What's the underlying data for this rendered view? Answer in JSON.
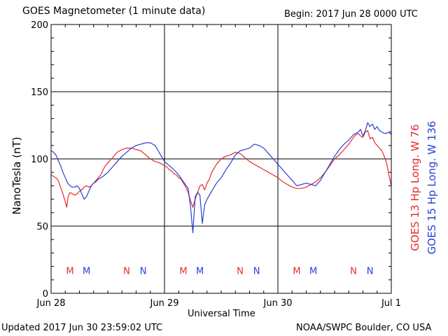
{
  "header": {
    "title": "GOES Magnetometer (1 minute data)",
    "begin": "Begin:  2017 Jun 28 0000 UTC"
  },
  "footer": {
    "updated": "Updated 2017 Jun 30 23:59:02 UTC",
    "source": "NOAA/SWPC Boulder, CO USA"
  },
  "colors": {
    "goes13": "#e52b2b",
    "goes15": "#2b3fd6"
  },
  "chart_data": {
    "type": "line",
    "title": "GOES Magnetometer (1 minute data)",
    "xlabel": "Universal Time",
    "ylabel": "NanoTesla (nT)",
    "xlim": [
      0,
      72
    ],
    "ylim": [
      0,
      200
    ],
    "yticks": [
      0,
      50,
      100,
      150,
      200
    ],
    "xticks": [
      {
        "label": "Jun 28",
        "hour": 0
      },
      {
        "label": "Jun 29",
        "hour": 24
      },
      {
        "label": "Jun 30",
        "hour": 48
      },
      {
        "label": "Jul 1",
        "hour": 72
      }
    ],
    "grid": true,
    "series": [
      {
        "name": "GOES 13 Hp  Long. W 76",
        "color": "#e52b2b",
        "x": [
          0,
          0.5,
          1,
          1.5,
          2,
          2.5,
          3,
          3.3,
          3.6,
          4,
          4.5,
          5,
          5.5,
          6,
          6.5,
          7,
          7.5,
          8,
          8.5,
          9,
          9.5,
          10,
          10.5,
          11,
          11.5,
          12,
          12.5,
          13,
          14,
          15,
          16,
          17,
          18,
          19,
          20,
          21,
          22,
          23,
          24,
          24.5,
          25,
          25.5,
          26,
          26.5,
          27,
          27.5,
          28,
          28.5,
          29,
          29.5,
          30,
          30.5,
          31,
          31.5,
          32,
          32.5,
          33,
          33.5,
          34,
          34.5,
          35,
          35.5,
          36,
          37,
          38,
          39,
          40,
          41,
          42,
          43,
          44,
          45,
          46,
          47,
          48,
          49,
          50,
          51,
          52,
          53,
          54,
          55,
          56,
          57,
          58,
          59,
          60,
          61,
          62,
          63,
          64,
          64.5,
          65,
          65.5,
          66,
          66.5,
          67,
          67.5,
          68,
          68.5,
          69,
          69.5,
          70,
          70.5,
          71,
          71.5,
          72
        ],
        "values": [
          88,
          87,
          86,
          84,
          79,
          74,
          68,
          64,
          72,
          75,
          74,
          73,
          74,
          76,
          77,
          79,
          80,
          79,
          80,
          82,
          84,
          86,
          88,
          92,
          95,
          97,
          99,
          101,
          105,
          107,
          108,
          108,
          107,
          106,
          103,
          100,
          98,
          97,
          95,
          94,
          92,
          91,
          89,
          88,
          86,
          85,
          82,
          79,
          75,
          69,
          64,
          70,
          75,
          80,
          81,
          77,
          82,
          85,
          90,
          93,
          96,
          98,
          100,
          102,
          103,
          105,
          104,
          101,
          98,
          96,
          94,
          92,
          90,
          88,
          86,
          83,
          81,
          79,
          78,
          78,
          79,
          81,
          83,
          86,
          90,
          95,
          100,
          103,
          107,
          111,
          116,
          118,
          119,
          117,
          116,
          120,
          121,
          115,
          116,
          112,
          110,
          108,
          106,
          102,
          97,
          88,
          80
        ]
      },
      {
        "name": "GOES 15 Hp  Long. W 136",
        "color": "#2b3fd6",
        "x": [
          0,
          0.5,
          1,
          1.5,
          2,
          2.5,
          3,
          3.5,
          4,
          4.5,
          5,
          5.5,
          6,
          6.5,
          7,
          7.5,
          8,
          8.5,
          9,
          9.5,
          10,
          11,
          12,
          13,
          14,
          15,
          16,
          17,
          18,
          19,
          20,
          21,
          22,
          23,
          24,
          25,
          26,
          27,
          28,
          29,
          29.5,
          30,
          30.5,
          31,
          31.5,
          32,
          32.5,
          33,
          33.5,
          34,
          35,
          36,
          37,
          38,
          39,
          40,
          41,
          42,
          43,
          44,
          45,
          46,
          47,
          48,
          49,
          50,
          51,
          52,
          53,
          54,
          55,
          56,
          57,
          58,
          59,
          60,
          61,
          62,
          63,
          64,
          65,
          65.5,
          66,
          66.5,
          67,
          67.5,
          68,
          68.5,
          69,
          69.5,
          70,
          70.5,
          71,
          71.5,
          72
        ],
        "values": [
          106,
          105,
          103,
          99,
          95,
          90,
          86,
          82,
          80,
          79,
          79,
          80,
          78,
          74,
          70,
          72,
          76,
          80,
          82,
          83,
          85,
          87,
          90,
          94,
          98,
          102,
          105,
          108,
          110,
          111,
          112,
          112,
          110,
          104,
          98,
          95,
          92,
          88,
          83,
          78,
          65,
          45,
          72,
          75,
          73,
          52,
          66,
          70,
          73,
          76,
          82,
          86,
          92,
          97,
          103,
          106,
          107,
          108,
          111,
          110,
          108,
          104,
          100,
          96,
          92,
          88,
          84,
          80,
          81,
          82,
          81,
          80,
          84,
          90,
          96,
          102,
          107,
          111,
          114,
          118,
          120,
          122,
          117,
          121,
          127,
          124,
          126,
          122,
          124,
          121,
          120,
          119,
          119,
          120,
          118
        ]
      }
    ],
    "markers": {
      "y": 17,
      "items": [
        {
          "label": "M",
          "hour": 4,
          "series": 0
        },
        {
          "label": "M",
          "hour": 7.5,
          "series": 1
        },
        {
          "label": "N",
          "hour": 16,
          "series": 0
        },
        {
          "label": "N",
          "hour": 19.5,
          "series": 1
        },
        {
          "label": "M",
          "hour": 28,
          "series": 0
        },
        {
          "label": "M",
          "hour": 31.5,
          "series": 1
        },
        {
          "label": "N",
          "hour": 40,
          "series": 0
        },
        {
          "label": "N",
          "hour": 43.5,
          "series": 1
        },
        {
          "label": "M",
          "hour": 52,
          "series": 0
        },
        {
          "label": "M",
          "hour": 55.5,
          "series": 1
        },
        {
          "label": "N",
          "hour": 64,
          "series": 0
        },
        {
          "label": "N",
          "hour": 67.5,
          "series": 1
        }
      ]
    }
  }
}
